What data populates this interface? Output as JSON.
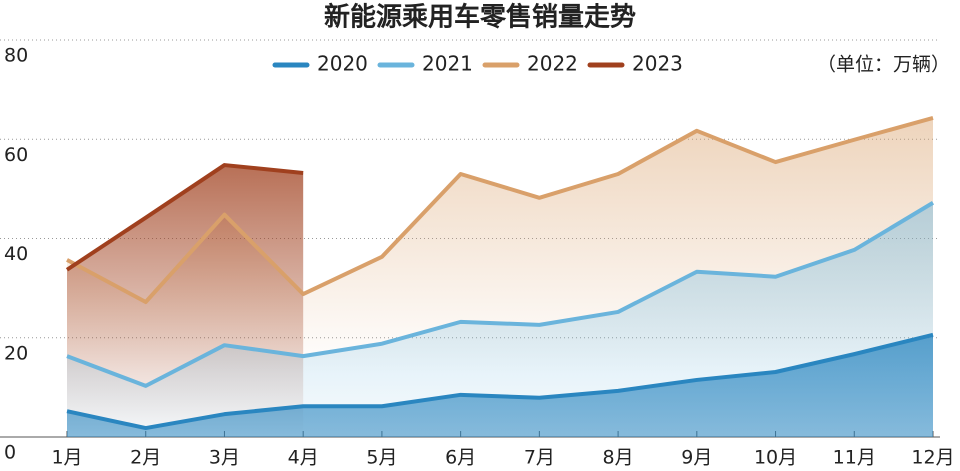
{
  "chart_data": {
    "type": "line",
    "title": "新能源乘用车零售销量走势",
    "unit": "（单位：万辆）",
    "categories": [
      "1月",
      "2月",
      "3月",
      "4月",
      "5月",
      "6月",
      "7月",
      "8月",
      "9月",
      "10月",
      "11月",
      "12月"
    ],
    "series": [
      {
        "name": "2020",
        "color": "#2a86c0",
        "values": [
          5.2,
          1.8,
          4.6,
          6.2,
          6.2,
          8.5,
          7.9,
          9.3,
          11.5,
          13.1,
          16.7,
          20.6
        ]
      },
      {
        "name": "2021",
        "color": "#6ab4dc",
        "values": [
          16.3,
          10.3,
          18.5,
          16.3,
          18.8,
          23.2,
          22.6,
          25.2,
          33.3,
          32.3,
          37.7,
          47.2
        ]
      },
      {
        "name": "2022",
        "color": "#d9a06a",
        "values": [
          35.7,
          27.2,
          44.8,
          28.8,
          36.3,
          53.0,
          48.2,
          53.0,
          61.7,
          55.4,
          59.9,
          64.3
        ]
      },
      {
        "name": "2023",
        "color": "#a0401e",
        "values": [
          33.7,
          44.2,
          54.8,
          53.2,
          null,
          null,
          null,
          null,
          null,
          null,
          null,
          null
        ]
      }
    ],
    "ylim": [
      0,
      80
    ],
    "yticks": [
      0,
      20,
      40,
      60,
      80
    ],
    "grid": true,
    "legend": "top"
  }
}
